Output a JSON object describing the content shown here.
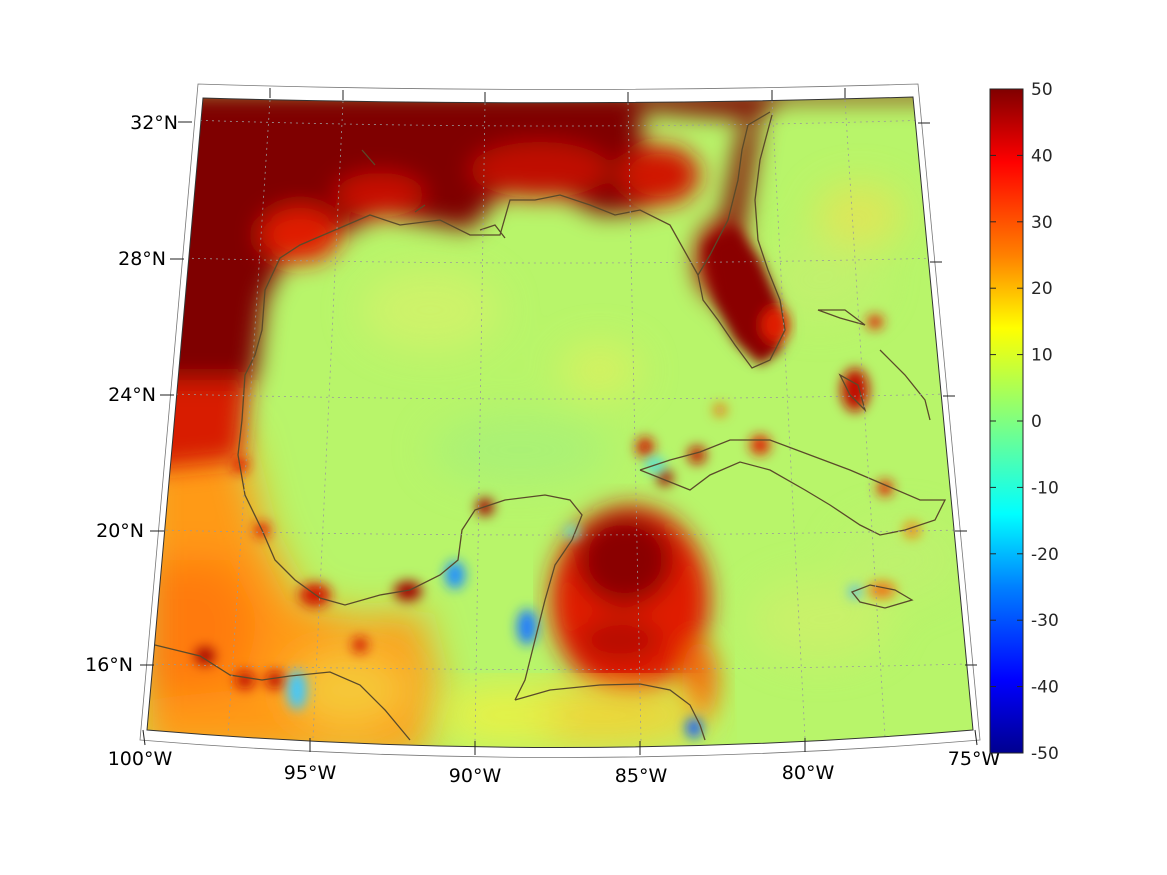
{
  "map": {
    "lon_labels": [
      "100°W",
      "95°W",
      "90°W",
      "85°W",
      "80°W",
      "75°W"
    ],
    "lat_labels": [
      "32°N",
      "28°N",
      "24°N",
      "20°N",
      "16°N"
    ],
    "lon_range": [
      -100,
      -75
    ],
    "lat_range": [
      14.5,
      33
    ]
  },
  "colorbar": {
    "labels": [
      "50",
      "40",
      "30",
      "20",
      "10",
      "0",
      "-10",
      "-20",
      "-30",
      "-40",
      "-50"
    ],
    "range": [
      -50,
      50
    ],
    "colormap": "jet",
    "colors": [
      "#00008f",
      "#0000ff",
      "#0080ff",
      "#00ffff",
      "#80ff80",
      "#ffff00",
      "#ff8000",
      "#ff0000",
      "#800000"
    ]
  },
  "colors": {
    "land_high": "#7f0000",
    "red": "#e61a00",
    "orange": "#ff8c10",
    "yellow": "#f5f53c",
    "ocean": "#b8f56a",
    "ocean_light": "#c8f07a",
    "blue": "#2a9cff",
    "coast": "#5a4a2a"
  }
}
